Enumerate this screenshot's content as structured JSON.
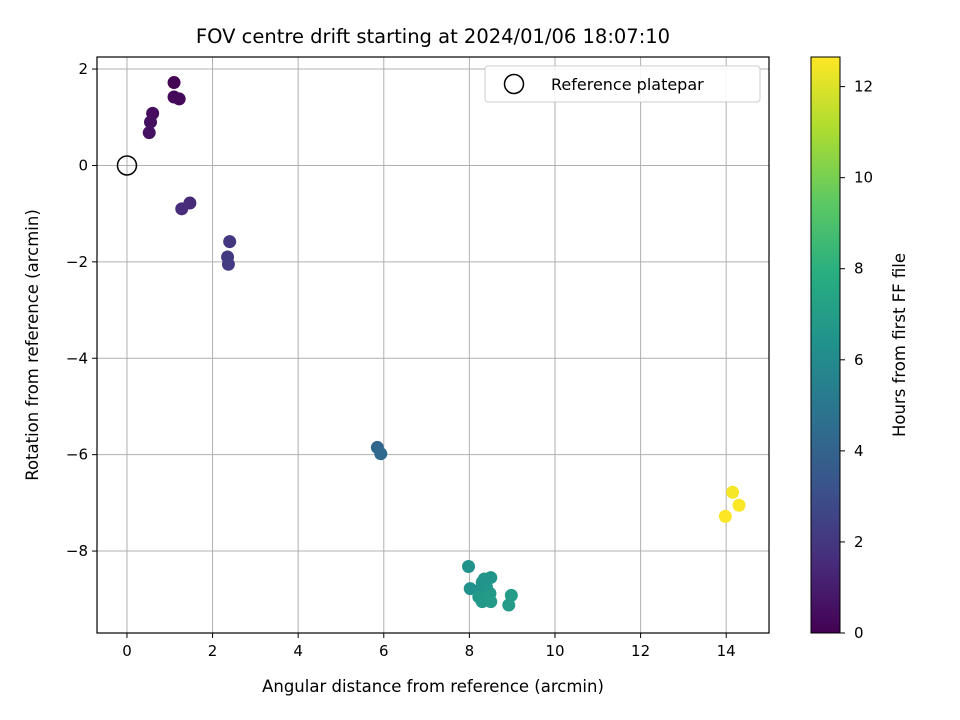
{
  "chart_data": {
    "type": "scatter",
    "title": "FOV centre drift starting at 2024/01/06 18:07:10",
    "xlabel": "Angular distance from reference (arcmin)",
    "ylabel": "Rotation from reference (arcmin)",
    "xlim": [
      -0.7,
      15.0
    ],
    "ylim": [
      -9.7,
      2.25
    ],
    "xticks": [
      0,
      2,
      4,
      6,
      8,
      10,
      12,
      14
    ],
    "yticks": [
      2,
      0,
      -2,
      -4,
      -6,
      -8
    ],
    "xtick_labels": [
      "0",
      "2",
      "4",
      "6",
      "8",
      "10",
      "12",
      "14"
    ],
    "ytick_labels": [
      "2",
      "0",
      "−2",
      "−4",
      "−6",
      "−8"
    ],
    "grid": true,
    "legend": {
      "placement": "top-right",
      "entries": [
        "Reference platepar"
      ]
    },
    "reference_point": {
      "x": 0,
      "y": 0,
      "label": "Reference platepar"
    },
    "colorbar": {
      "label": "Hours from first FF file",
      "colormap": "viridis",
      "range": [
        0,
        12.65
      ],
      "ticks": [
        0,
        2,
        4,
        6,
        8,
        10,
        12
      ],
      "tick_labels": [
        "0",
        "2",
        "4",
        "6",
        "8",
        "10",
        "12"
      ]
    },
    "points": [
      {
        "x": 1.1,
        "y": 1.72,
        "hours": 0.05
      },
      {
        "x": 1.1,
        "y": 1.42,
        "hours": 0.2
      },
      {
        "x": 1.22,
        "y": 1.38,
        "hours": 0.3
      },
      {
        "x": 0.6,
        "y": 1.08,
        "hours": 0.4
      },
      {
        "x": 0.55,
        "y": 0.9,
        "hours": 0.5
      },
      {
        "x": 0.52,
        "y": 0.68,
        "hours": 0.6
      },
      {
        "x": 1.47,
        "y": -0.78,
        "hours": 1.5
      },
      {
        "x": 1.28,
        "y": -0.9,
        "hours": 1.6
      },
      {
        "x": 2.4,
        "y": -1.58,
        "hours": 2.0
      },
      {
        "x": 2.35,
        "y": -1.9,
        "hours": 2.1
      },
      {
        "x": 2.37,
        "y": -2.05,
        "hours": 2.2
      },
      {
        "x": 5.85,
        "y": -5.85,
        "hours": 4.2
      },
      {
        "x": 5.93,
        "y": -5.98,
        "hours": 4.3
      },
      {
        "x": 7.98,
        "y": -8.32,
        "hours": 6.3
      },
      {
        "x": 8.02,
        "y": -8.78,
        "hours": 6.35
      },
      {
        "x": 8.25,
        "y": -8.8,
        "hours": 6.4
      },
      {
        "x": 8.3,
        "y": -8.65,
        "hours": 6.45
      },
      {
        "x": 8.35,
        "y": -8.58,
        "hours": 6.5
      },
      {
        "x": 8.5,
        "y": -8.55,
        "hours": 6.55
      },
      {
        "x": 8.4,
        "y": -8.75,
        "hours": 6.6
      },
      {
        "x": 8.48,
        "y": -8.88,
        "hours": 6.65
      },
      {
        "x": 8.22,
        "y": -8.95,
        "hours": 6.7
      },
      {
        "x": 8.3,
        "y": -9.05,
        "hours": 6.75
      },
      {
        "x": 8.45,
        "y": -8.95,
        "hours": 6.8
      },
      {
        "x": 8.5,
        "y": -9.05,
        "hours": 6.85
      },
      {
        "x": 8.98,
        "y": -8.92,
        "hours": 6.9
      },
      {
        "x": 8.92,
        "y": -9.12,
        "hours": 6.95
      },
      {
        "x": 14.15,
        "y": -6.78,
        "hours": 12.5
      },
      {
        "x": 14.3,
        "y": -7.05,
        "hours": 12.6
      },
      {
        "x": 13.98,
        "y": -7.28,
        "hours": 12.65
      }
    ]
  }
}
